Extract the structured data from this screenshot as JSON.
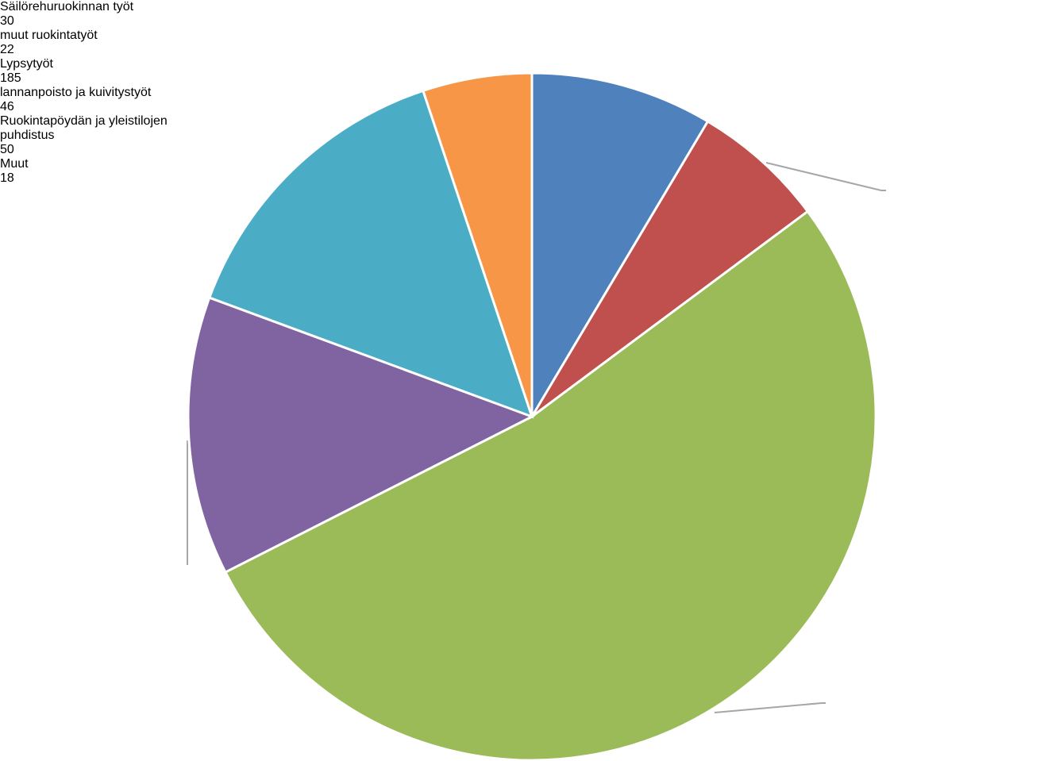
{
  "chart_data": {
    "type": "pie",
    "categories": [
      "Säilörehuruokinnan työt",
      "muut ruokintatyöt",
      "Lypsytyöt",
      "lannanpoisto ja kuivitystyöt",
      "Ruokintapöydän ja yleistilojen puhdistus",
      "Muut"
    ],
    "values": [
      30,
      22,
      185,
      46,
      50,
      18
    ],
    "colors": [
      "#4f81bd",
      "#c0504d",
      "#9bbb59",
      "#8064a2",
      "#4bacc6",
      "#f79646"
    ]
  }
}
